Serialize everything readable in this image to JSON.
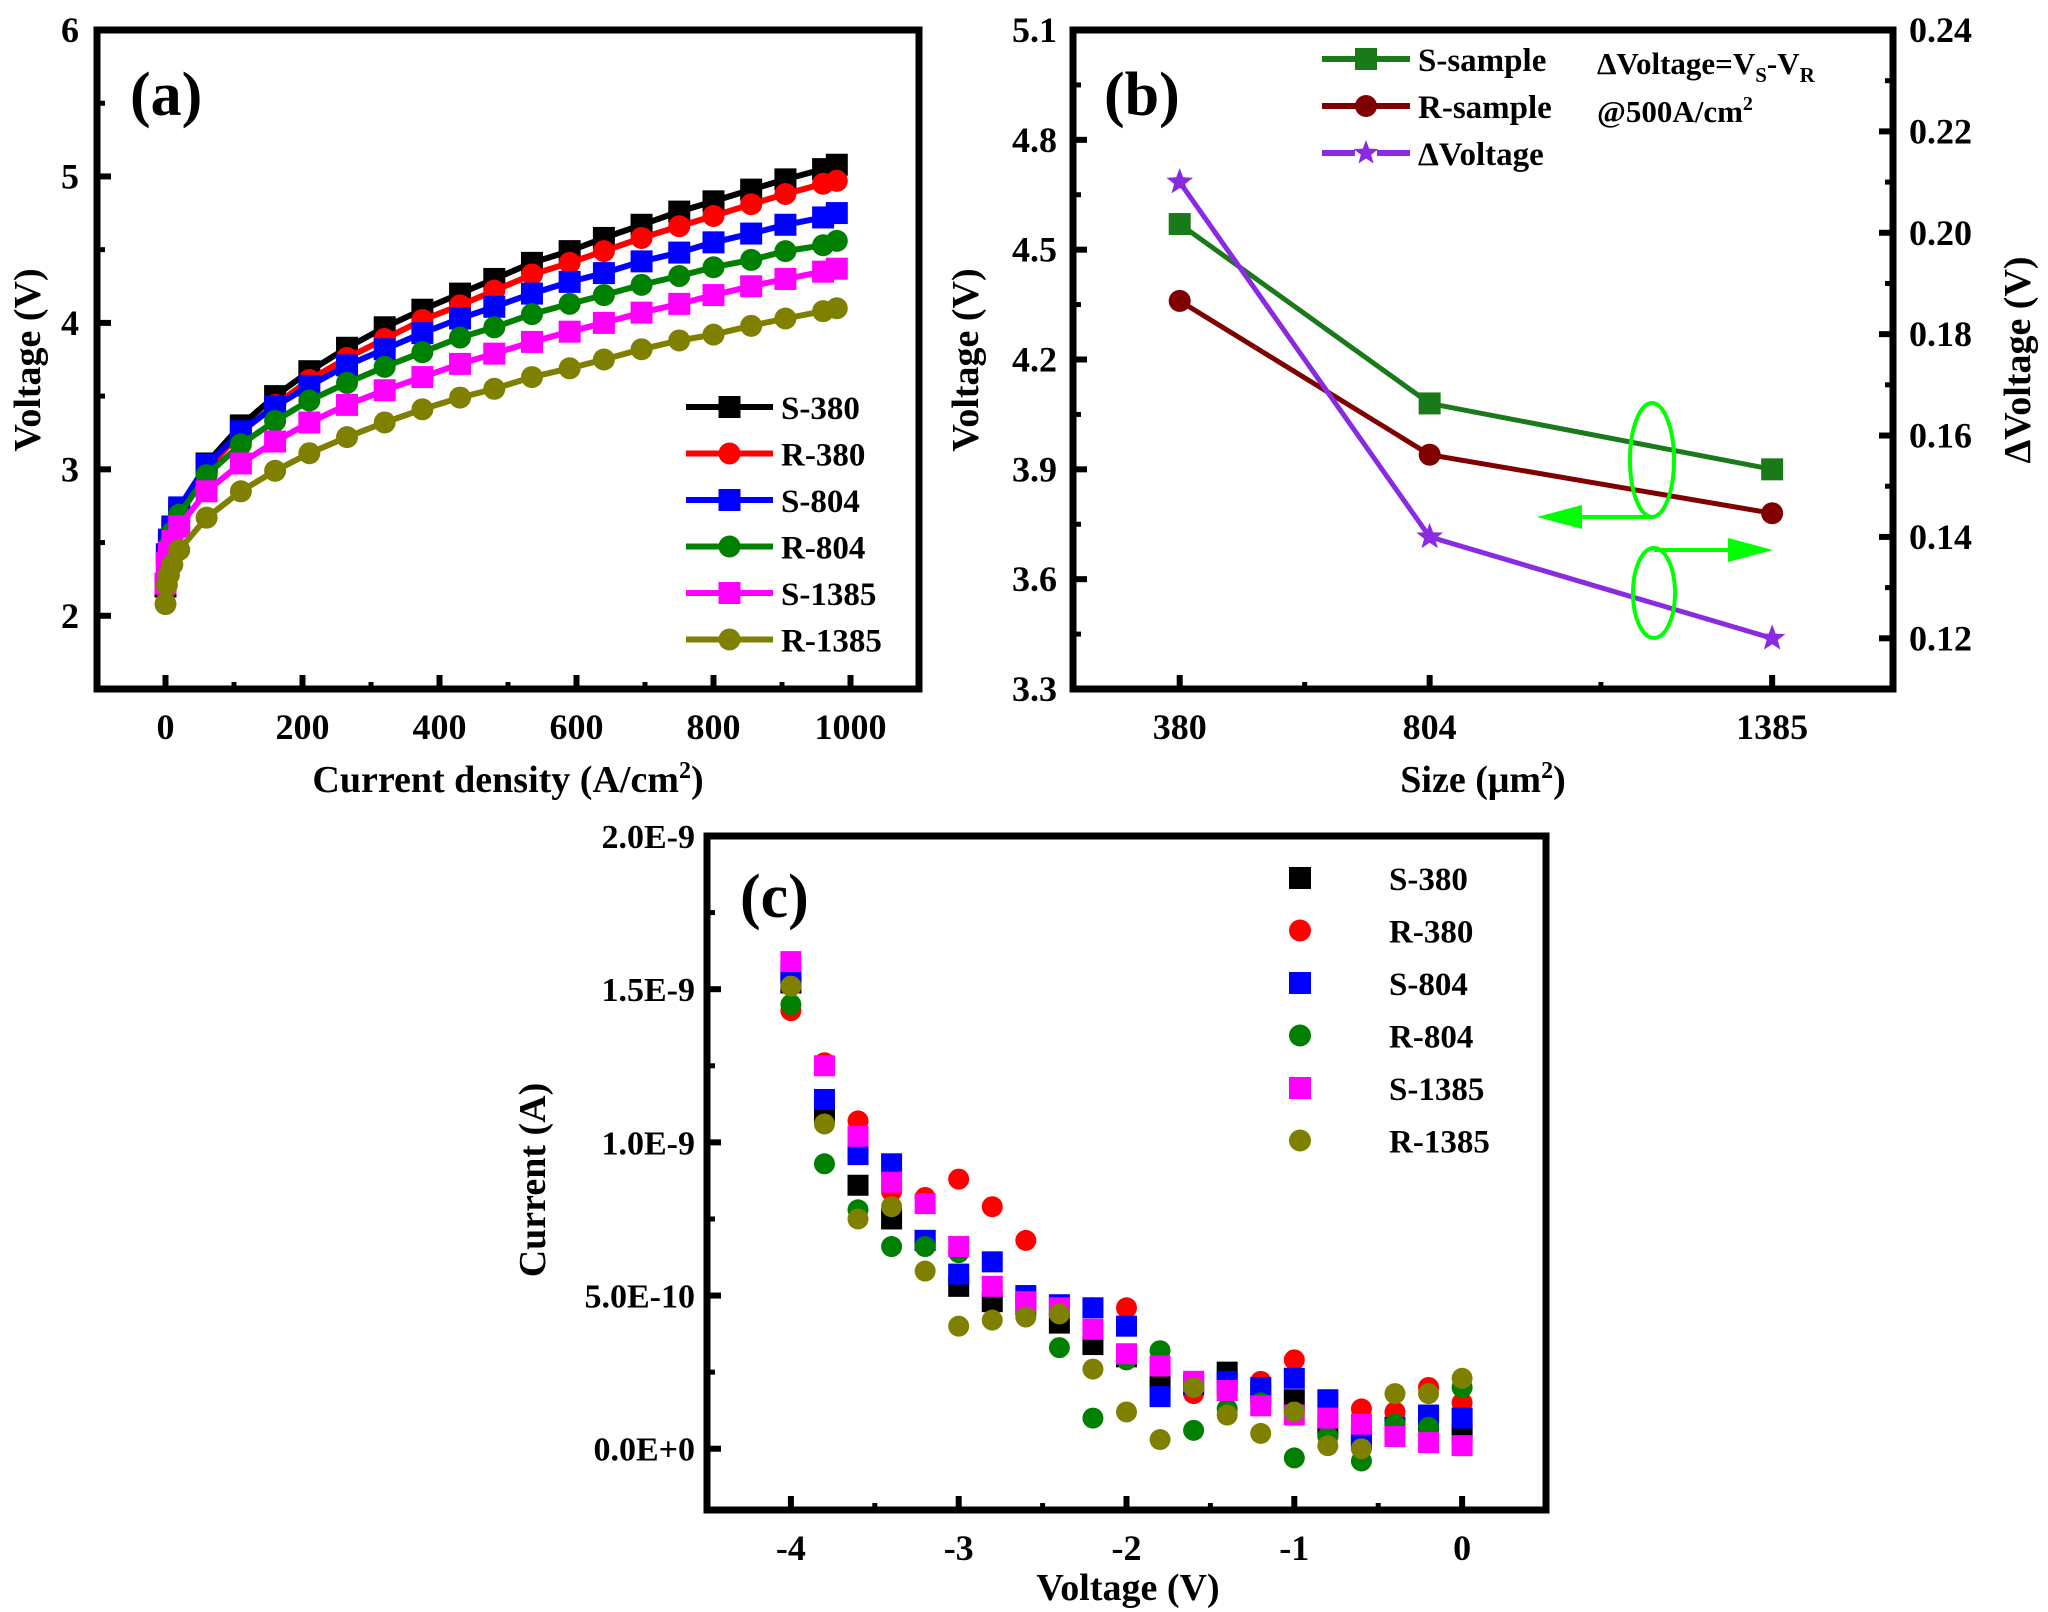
{
  "figure": {
    "panels": [
      "(a)",
      "(b)",
      "(c)"
    ]
  },
  "chart_data": [
    {
      "id": "a",
      "type": "line",
      "panel_label": "(a)",
      "title": "",
      "xlabel": "Current density (A/cm",
      "xlabel_sup": "2",
      "xlabel_end": ")",
      "ylabel": "Voltage (V)",
      "xlim": [
        -100,
        1100
      ],
      "ylim": [
        1.5,
        6
      ],
      "xticks": [
        0,
        200,
        400,
        600,
        800,
        1000
      ],
      "xtick_labels": [
        "0",
        "200",
        "400",
        "600",
        "800",
        "1000"
      ],
      "yticks": [
        2,
        3,
        4,
        5,
        6
      ],
      "ytick_labels": [
        "2",
        "3",
        "4",
        "5",
        "6"
      ],
      "grid": false,
      "legend_position": "bottom-right",
      "x": [
        0,
        2,
        5,
        10,
        20,
        60,
        110,
        160,
        210,
        265,
        320,
        375,
        430,
        480,
        535,
        590,
        640,
        695,
        750,
        800,
        855,
        905,
        960,
        980
      ],
      "series": [
        {
          "name": "S-380",
          "color": "#000000",
          "marker": "square",
          "values": [
            2.2,
            2.39,
            2.48,
            2.58,
            2.72,
            3.04,
            3.3,
            3.5,
            3.67,
            3.83,
            3.97,
            4.09,
            4.2,
            4.3,
            4.41,
            4.49,
            4.58,
            4.67,
            4.76,
            4.83,
            4.91,
            4.98,
            5.05,
            5.08
          ]
        },
        {
          "name": "R-380",
          "color": "#ff0000",
          "marker": "circle",
          "values": [
            2.18,
            2.36,
            2.45,
            2.55,
            2.68,
            3.0,
            3.25,
            3.44,
            3.61,
            3.76,
            3.89,
            4.02,
            4.12,
            4.22,
            4.33,
            4.41,
            4.49,
            4.58,
            4.66,
            4.73,
            4.81,
            4.88,
            4.95,
            4.97
          ]
        },
        {
          "name": "S-804",
          "color": "#0000ff",
          "marker": "square",
          "values": [
            2.22,
            2.42,
            2.52,
            2.61,
            2.74,
            3.03,
            3.26,
            3.43,
            3.57,
            3.71,
            3.82,
            3.93,
            4.03,
            4.11,
            4.2,
            4.28,
            4.34,
            4.42,
            4.48,
            4.55,
            4.61,
            4.67,
            4.72,
            4.75
          ]
        },
        {
          "name": "R-804",
          "color": "#008000",
          "marker": "circle",
          "values": [
            2.2,
            2.39,
            2.48,
            2.57,
            2.69,
            2.96,
            3.17,
            3.33,
            3.47,
            3.59,
            3.7,
            3.8,
            3.9,
            3.97,
            4.06,
            4.13,
            4.19,
            4.26,
            4.32,
            4.38,
            4.43,
            4.49,
            4.53,
            4.56
          ]
        },
        {
          "name": "S-1385",
          "color": "#ff00ff",
          "marker": "square",
          "values": [
            2.22,
            2.36,
            2.43,
            2.51,
            2.61,
            2.85,
            3.04,
            3.19,
            3.32,
            3.44,
            3.54,
            3.63,
            3.72,
            3.79,
            3.87,
            3.94,
            4.0,
            4.07,
            4.13,
            4.19,
            4.25,
            4.3,
            4.35,
            4.37
          ]
        },
        {
          "name": "R-1385",
          "color": "#808000",
          "marker": "circle",
          "values": [
            2.08,
            2.21,
            2.28,
            2.35,
            2.45,
            2.67,
            2.85,
            2.99,
            3.11,
            3.22,
            3.32,
            3.41,
            3.49,
            3.55,
            3.63,
            3.69,
            3.75,
            3.82,
            3.88,
            3.92,
            3.98,
            4.03,
            4.08,
            4.1
          ]
        }
      ]
    },
    {
      "id": "b",
      "type": "line",
      "panel_label": "(b)",
      "title": "",
      "xlabel": "Size (μm",
      "xlabel_sup": "2",
      "xlabel_end": ")",
      "ylabel": "Voltage (V)",
      "ylabel_right": "ΔVoltage (V)",
      "xlim": [
        199,
        1590
      ],
      "ylim": [
        3.3,
        5.1
      ],
      "ylim_right": [
        0.11,
        0.24
      ],
      "categories": [
        380,
        804,
        1385
      ],
      "xtick_labels": [
        "380",
        "804",
        "1385"
      ],
      "yticks": [
        3.3,
        3.6,
        3.9,
        4.2,
        4.5,
        4.8,
        5.1
      ],
      "ytick_labels": [
        "3.3",
        "3.6",
        "3.9",
        "4.2",
        "4.5",
        "4.8",
        "5.1"
      ],
      "yticks_right": [
        0.12,
        0.14,
        0.16,
        0.18,
        0.2,
        0.22,
        0.24
      ],
      "ytick_labels_right": [
        "0.12",
        "0.14",
        "0.16",
        "0.18",
        "0.20",
        "0.22",
        "0.24"
      ],
      "grid": false,
      "legend_position": "top-center",
      "annotation": {
        "line1_prefix": "ΔVoltage=V",
        "sub_s": "S",
        "dash": "-V",
        "sub_r": "R",
        "line2": "@500A/cm",
        "line2_sup": "2"
      },
      "series": [
        {
          "name": "S-sample",
          "color": "#1a7a1a",
          "marker": "square",
          "axis": "left",
          "values": [
            4.57,
            4.08,
            3.9
          ]
        },
        {
          "name": "R-sample",
          "color": "#800000",
          "marker": "circle",
          "axis": "left",
          "values": [
            4.36,
            3.94,
            3.78
          ]
        },
        {
          "name": "ΔVoltage",
          "color": "#8a2be2",
          "marker": "star",
          "axis": "right",
          "values": [
            0.21,
            0.14,
            0.12
          ]
        }
      ],
      "axis_indicators": [
        {
          "points_to": "left",
          "color": "#00ff00",
          "encloses": [
            "S-sample",
            "R-sample"
          ]
        },
        {
          "points_to": "right",
          "color": "#00ff00",
          "encloses": [
            "ΔVoltage"
          ]
        }
      ]
    },
    {
      "id": "c",
      "type": "scatter",
      "panel_label": "(c)",
      "title": "",
      "xlabel": "Voltage (V)",
      "ylabel": "Current (A)",
      "xlim": [
        -4.5,
        0.5
      ],
      "ylim": [
        -2e-10,
        2e-09
      ],
      "xticks": [
        -4,
        -3,
        -2,
        -1,
        0
      ],
      "xtick_labels": [
        "-4",
        "-3",
        "-2",
        "-1",
        "0"
      ],
      "yticks": [
        0,
        5e-10,
        1e-09,
        1.5e-09,
        2e-09
      ],
      "ytick_labels": [
        "0.0E+0",
        "5.0E-10",
        "1.0E-9",
        "1.5E-9",
        "2.0E-9"
      ],
      "grid": false,
      "legend_position": "top-right",
      "y_unit_scale": 1e-10,
      "x": [
        -4.0,
        -3.8,
        -3.6,
        -3.4,
        -3.2,
        -3.0,
        -2.8,
        -2.6,
        -2.4,
        -2.2,
        -2.0,
        -1.8,
        -1.6,
        -1.4,
        -1.2,
        -1.0,
        -0.8,
        -0.6,
        -0.4,
        -0.2,
        0.0
      ],
      "series": [
        {
          "name": "S-380",
          "color": "#000000",
          "marker": "square",
          "values_e10": [
            15.2,
            11.0,
            8.6,
            7.5,
            6.8,
            5.3,
            4.8,
            4.7,
            4.1,
            3.4,
            3.0,
            2.2,
            2.1,
            2.5,
            1.8,
            1.6,
            0.7,
            0.3,
            0.7,
            0.9,
            0.5
          ]
        },
        {
          "name": "R-380",
          "color": "#ff0000",
          "marker": "circle",
          "values_e10": [
            14.3,
            12.6,
            10.7,
            8.4,
            8.2,
            8.8,
            7.9,
            6.8,
            4.6,
            4.6,
            4.6,
            2.8,
            1.8,
            1.8,
            2.2,
            2.9,
            1.1,
            1.3,
            1.2,
            2.0,
            1.5
          ]
        },
        {
          "name": "S-804",
          "color": "#0000ff",
          "marker": "square",
          "values_e10": [
            15.5,
            11.4,
            9.6,
            9.3,
            6.8,
            5.7,
            6.1,
            5.0,
            4.7,
            4.6,
            4.0,
            1.7,
            2.1,
            2.2,
            2.0,
            2.3,
            1.6,
            0.4,
            0.7,
            1.1,
            1.0
          ]
        },
        {
          "name": "R-804",
          "color": "#008000",
          "marker": "circle",
          "values_e10": [
            14.5,
            9.3,
            7.8,
            6.6,
            6.6,
            6.4,
            5.3,
            4.5,
            3.3,
            1.0,
            2.9,
            3.2,
            0.6,
            1.3,
            1.5,
            -0.3,
            0.4,
            -0.4,
            0.8,
            0.7,
            2.0
          ]
        },
        {
          "name": "S-1385",
          "color": "#ff00ff",
          "marker": "square",
          "values_e10": [
            15.9,
            12.5,
            10.2,
            8.7,
            8.0,
            6.6,
            5.3,
            4.8,
            4.6,
            3.9,
            3.1,
            2.7,
            2.2,
            1.9,
            1.4,
            1.1,
            1.0,
            0.8,
            0.4,
            0.2,
            0.1
          ]
        },
        {
          "name": "R-1385",
          "color": "#808000",
          "marker": "circle",
          "values_e10": [
            15.1,
            10.6,
            7.5,
            7.9,
            5.8,
            4.0,
            4.2,
            4.3,
            4.4,
            2.6,
            1.2,
            0.3,
            2.0,
            1.1,
            0.5,
            1.2,
            0.1,
            0.0,
            1.8,
            1.8,
            2.3
          ]
        }
      ]
    }
  ]
}
